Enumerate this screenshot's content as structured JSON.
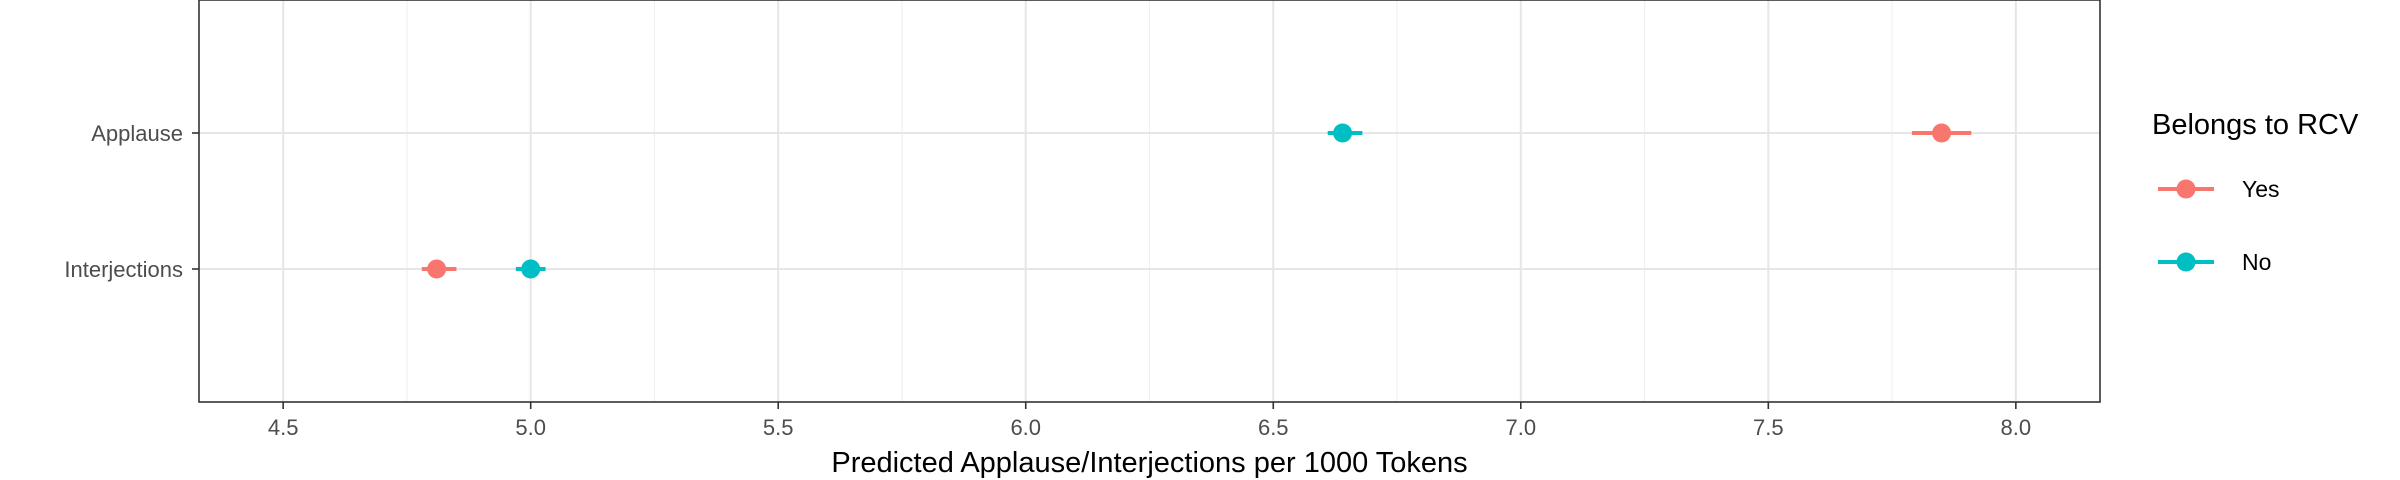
{
  "chart_data": {
    "type": "scatter",
    "subtype": "dot-with-error-bars",
    "orientation": "horizontal",
    "title": "",
    "xlabel": "Predicted Applause/Interjections per 1000 Tokens",
    "ylabel": "",
    "categories": [
      "Applause",
      "Interjections"
    ],
    "xlim": [
      4.33,
      8.17
    ],
    "xticks": [
      4.5,
      5.0,
      5.5,
      6.0,
      6.5,
      7.0,
      7.5,
      8.0
    ],
    "xtick_labels": [
      "4.5",
      "5.0",
      "5.5",
      "6.0",
      "6.5",
      "7.0",
      "7.5",
      "8.0"
    ],
    "grid": true,
    "legend": {
      "title": "Belongs to RCV",
      "placement": "right"
    },
    "series": [
      {
        "name": "Yes",
        "color": "#F8766D",
        "points": [
          {
            "category": "Applause",
            "value": 7.85,
            "ci_low": 7.79,
            "ci_high": 7.91
          },
          {
            "category": "Interjections",
            "value": 4.81,
            "ci_low": 4.78,
            "ci_high": 4.85
          }
        ]
      },
      {
        "name": "No",
        "color": "#00BFC4",
        "points": [
          {
            "category": "Applause",
            "value": 6.64,
            "ci_low": 6.61,
            "ci_high": 6.68
          },
          {
            "category": "Interjections",
            "value": 5.0,
            "ci_low": 4.97,
            "ci_high": 5.03
          }
        ]
      }
    ]
  }
}
